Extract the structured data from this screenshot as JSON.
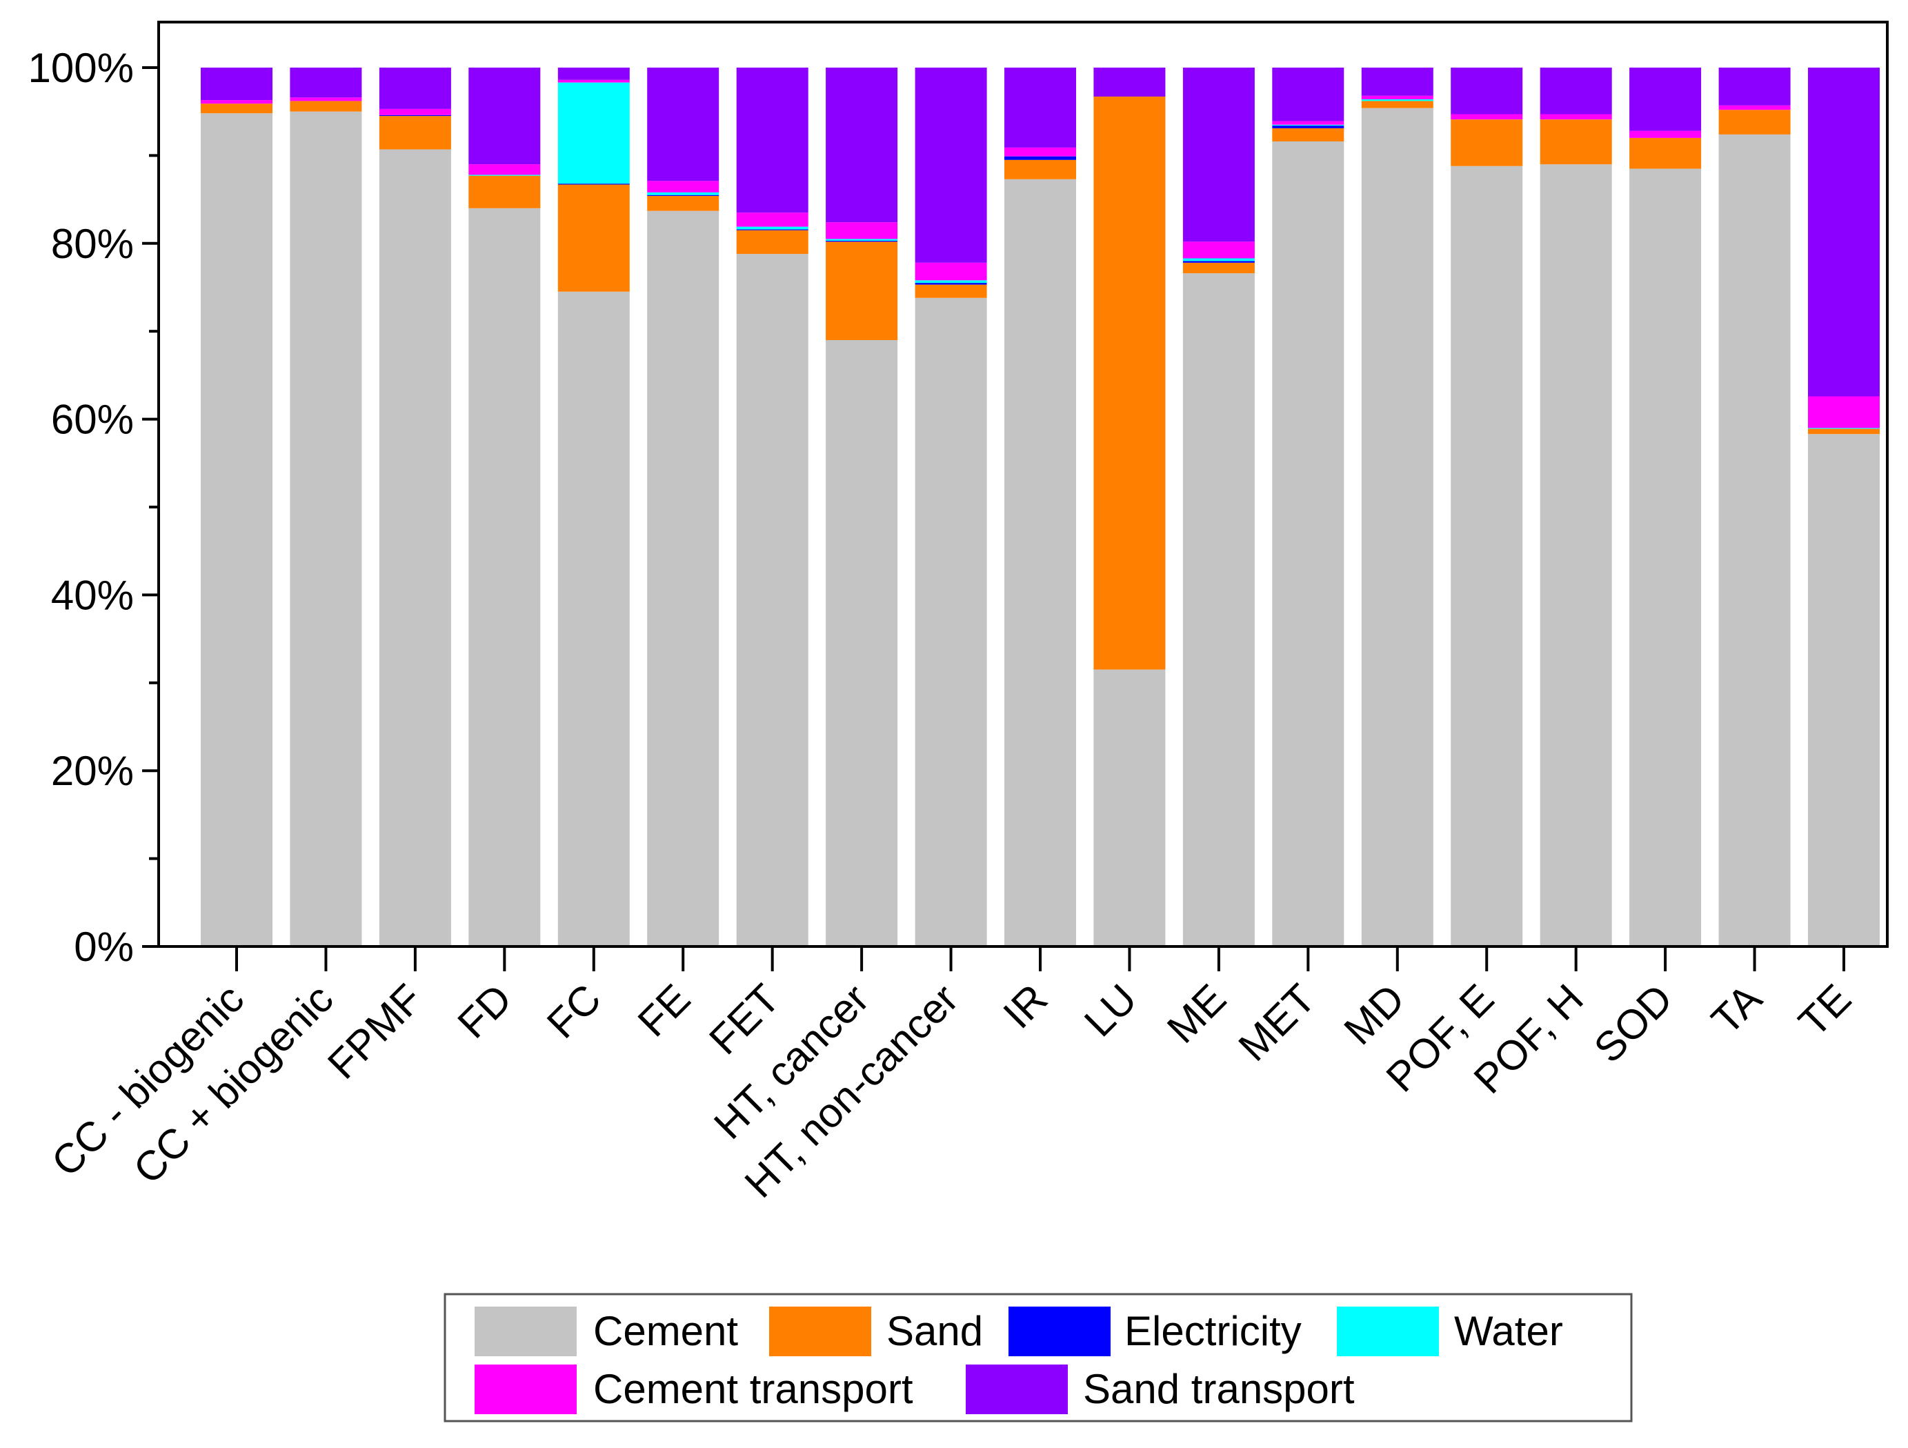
{
  "chart_data": {
    "type": "bar",
    "stacked": true,
    "title": "",
    "xlabel": "",
    "ylabel": "",
    "ylim": [
      0,
      100
    ],
    "y_ticks": [
      "0%",
      "20%",
      "40%",
      "60%",
      "80%",
      "100%"
    ],
    "y_tick_values": [
      0,
      20,
      40,
      60,
      80,
      100
    ],
    "categories": [
      "CC - biogenic",
      "CC + biogenic",
      "FPMF",
      "FD",
      "FC",
      "FE",
      "FET",
      "HT, cancer",
      "HT, non-cancer",
      "IR",
      "LU",
      "ME",
      "MET",
      "MD",
      "POF, E",
      "POF, H",
      "SOD",
      "TA",
      "TE"
    ],
    "series": [
      {
        "name": "Cement",
        "color": "#c4c4c4",
        "values": [
          94.8,
          95.0,
          90.7,
          84.0,
          74.5,
          83.7,
          78.8,
          69.0,
          73.8,
          87.3,
          31.5,
          76.6,
          91.6,
          95.4,
          88.8,
          89.0,
          88.5,
          92.4,
          58.3
        ]
      },
      {
        "name": "Sand",
        "color": "#ff8000",
        "values": [
          1.1,
          1.2,
          3.8,
          3.7,
          12.2,
          1.7,
          2.7,
          11.2,
          1.5,
          2.2,
          65.2,
          1.2,
          1.5,
          0.8,
          5.3,
          5.1,
          3.5,
          2.8,
          0.6
        ]
      },
      {
        "name": "Electricity",
        "color": "#0000ff",
        "values": [
          0.0,
          0.0,
          0.1,
          0.0,
          0.1,
          0.1,
          0.1,
          0.1,
          0.2,
          0.4,
          0.0,
          0.2,
          0.3,
          0.0,
          0.0,
          0.0,
          0.0,
          0.0,
          0.0
        ]
      },
      {
        "name": "Water",
        "color": "#00ffff",
        "values": [
          0.0,
          0.0,
          0.0,
          0.1,
          11.5,
          0.3,
          0.3,
          0.2,
          0.3,
          0.0,
          0.0,
          0.3,
          0.1,
          0.2,
          0.0,
          0.0,
          0.0,
          0.0,
          0.1
        ]
      },
      {
        "name": "Cement transport",
        "color": "#ff00ff",
        "values": [
          0.4,
          0.4,
          0.7,
          1.2,
          0.3,
          1.3,
          1.6,
          1.9,
          2.0,
          1.0,
          0.0,
          1.9,
          0.4,
          0.4,
          0.6,
          0.6,
          0.8,
          0.5,
          3.6
        ]
      },
      {
        "name": "Sand transport",
        "color": "#8c00ff",
        "values": [
          3.7,
          3.4,
          4.7,
          11.0,
          1.4,
          12.9,
          16.5,
          17.6,
          22.2,
          9.1,
          3.3,
          19.8,
          6.1,
          3.2,
          5.3,
          5.3,
          7.2,
          4.3,
          37.4
        ]
      }
    ],
    "legend": {
      "position": "bottom",
      "columns": 4
    }
  }
}
